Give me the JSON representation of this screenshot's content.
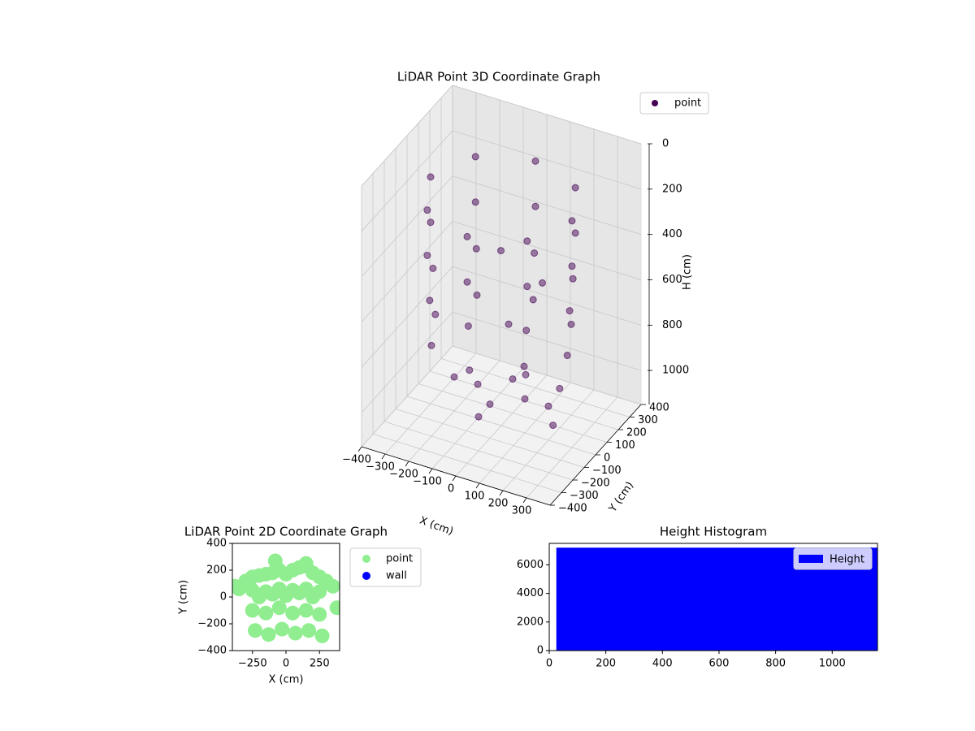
{
  "chart_data": [
    {
      "type": "scatter3d",
      "title": "LiDAR Point 3D Coordinate Graph",
      "xlabel": "X (cm)",
      "ylabel": "Y (cm)",
      "zlabel": "H (cm)",
      "xlim": [
        -400,
        400
      ],
      "ylim": [
        -400,
        400
      ],
      "zlim": [
        1150,
        0
      ],
      "xticks": [
        {
          "value": -400,
          "label": "−400"
        },
        {
          "value": -300,
          "label": "−300"
        },
        {
          "value": -200,
          "label": "−200"
        },
        {
          "value": -100,
          "label": "−100"
        },
        0,
        100,
        200,
        300
      ],
      "yticks": [
        {
          "value": -400,
          "label": "−400"
        },
        {
          "value": -300,
          "label": "−300"
        },
        {
          "value": -200,
          "label": "−200"
        },
        {
          "value": -100,
          "label": "−100"
        },
        0,
        100,
        200,
        300,
        400
      ],
      "zticks": [
        0,
        200,
        400,
        600,
        800,
        1000
      ],
      "legend": "upper-right",
      "grid": true,
      "series": [
        {
          "name": "point",
          "color": "#440154",
          "x": [
            300,
            212,
            0,
            -212,
            -300,
            -212,
            0,
            212,
            300,
            212,
            0,
            -212,
            -300,
            -212,
            0,
            212,
            290,
            205,
            0,
            -205,
            -290,
            -205,
            0,
            205,
            280,
            200,
            0,
            -200,
            -280,
            -200,
            0,
            200,
            100,
            0,
            -100,
            0,
            200,
            0,
            -200,
            0,
            150,
            -50,
            60,
            320,
            340
          ],
          "y": [
            0,
            212,
            300,
            212,
            0,
            -212,
            -300,
            -212,
            0,
            212,
            300,
            212,
            0,
            -212,
            -300,
            -212,
            0,
            205,
            290,
            205,
            0,
            -205,
            -290,
            -205,
            0,
            200,
            280,
            200,
            0,
            -200,
            -280,
            -200,
            0,
            100,
            0,
            -100,
            0,
            200,
            0,
            -200,
            50,
            100,
            -60,
            -150,
            -250
          ],
          "z": [
            150,
            150,
            150,
            150,
            150,
            150,
            150,
            150,
            350,
            350,
            350,
            350,
            350,
            350,
            350,
            350,
            550,
            550,
            550,
            550,
            550,
            550,
            550,
            550,
            750,
            750,
            750,
            750,
            750,
            750,
            750,
            750,
            1000,
            1000,
            1000,
            1000,
            1000,
            1000,
            1000,
            1000,
            500,
            450,
            650,
            800,
            900
          ]
        }
      ]
    },
    {
      "type": "scatter",
      "title": "LiDAR Point 2D Coordinate Graph",
      "xlabel": "X (cm)",
      "ylabel": "Y (cm)",
      "xlim": [
        -400,
        400
      ],
      "ylim": [
        -400,
        400
      ],
      "xticks": [
        {
          "value": -250,
          "label": "−250"
        },
        0,
        250
      ],
      "yticks": [
        {
          "value": -400,
          "label": "−400"
        },
        {
          "value": -200,
          "label": "−200"
        },
        0,
        200,
        400
      ],
      "legend": "outside-right",
      "series": [
        {
          "name": "point",
          "color": "#90ee90",
          "x": [
            -380,
            -350,
            -300,
            -250,
            -200,
            -150,
            -100,
            -50,
            0,
            50,
            100,
            150,
            200,
            250,
            300,
            350,
            380,
            -250,
            -200,
            -150,
            -100,
            -50,
            0,
            50,
            100,
            150,
            200,
            250,
            -250,
            -150,
            -50,
            50,
            150,
            250,
            -230,
            -130,
            -30,
            70,
            170,
            270,
            -80,
            150
          ],
          "y": [
            80,
            60,
            120,
            150,
            160,
            170,
            180,
            200,
            170,
            200,
            220,
            230,
            180,
            150,
            120,
            80,
            -80,
            50,
            0,
            40,
            20,
            60,
            10,
            50,
            30,
            60,
            0,
            40,
            -100,
            -120,
            -80,
            -120,
            -100,
            -130,
            -250,
            -280,
            -240,
            -270,
            -250,
            -290,
            270,
            250
          ]
        },
        {
          "name": "wall",
          "color": "#0000ff",
          "x": [],
          "y": []
        }
      ]
    },
    {
      "type": "histogram",
      "title": "Height Histogram",
      "xlim": [
        0,
        1160
      ],
      "ylim": [
        0,
        7500
      ],
      "xticks": [
        0,
        200,
        400,
        600,
        800,
        1000
      ],
      "yticks": [
        0,
        2000,
        4000,
        6000
      ],
      "legend": "upper-right",
      "series": [
        {
          "name": "Height",
          "color": "#0000ff",
          "bins": [
            25,
            1160
          ],
          "counts": [
            7200
          ]
        }
      ]
    }
  ]
}
